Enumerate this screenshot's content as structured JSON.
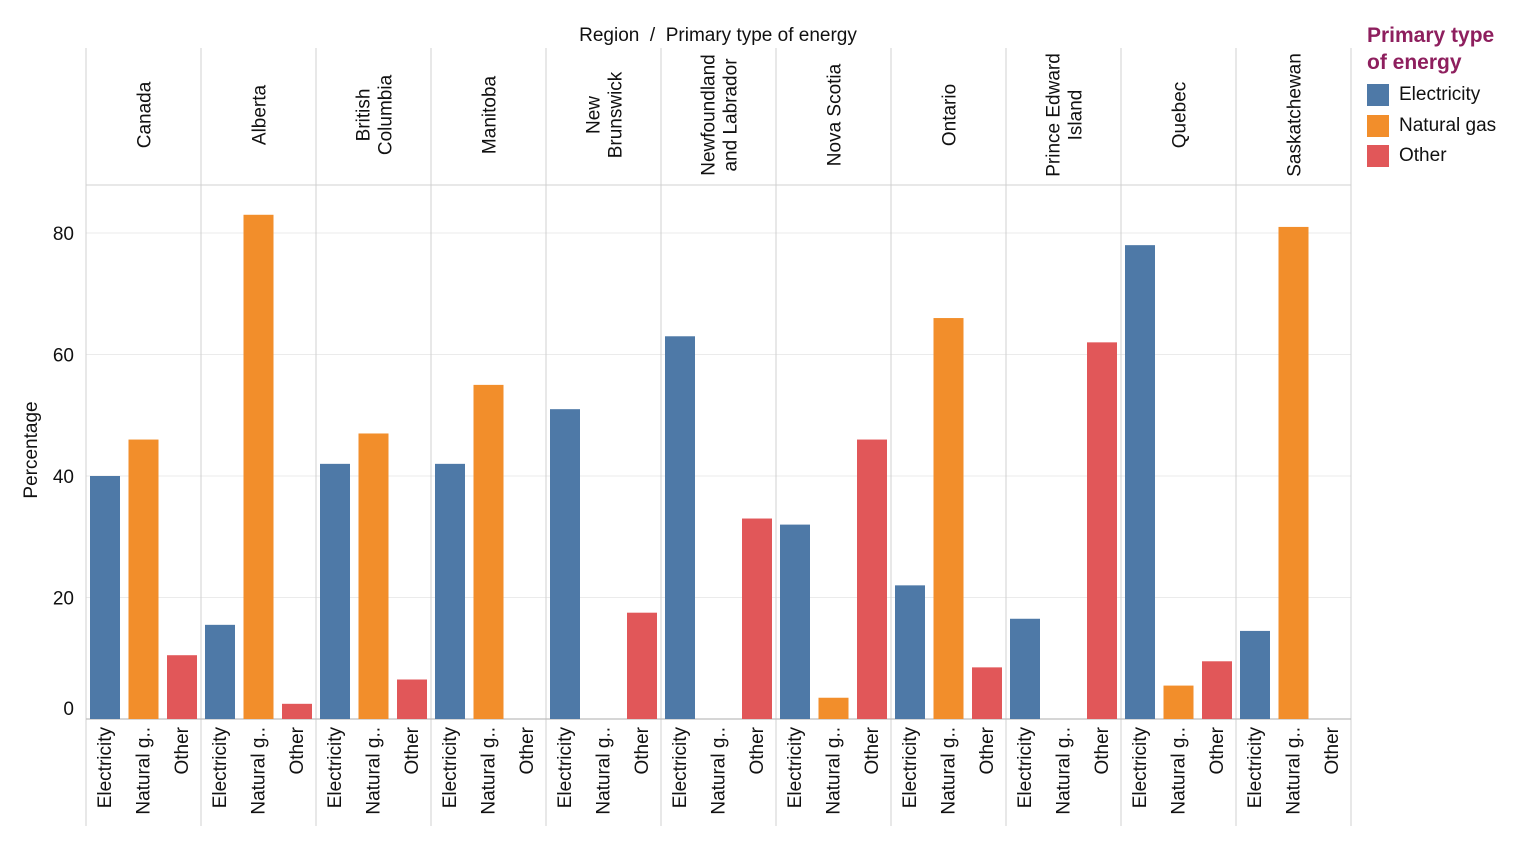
{
  "colors": {
    "Electricity": "#4e79a7",
    "Natural gas": "#f28e2b",
    "Other": "#e15759",
    "legend_title": "#8e1f5e",
    "grid": "#ebebeb",
    "divider": "#d0d0d0"
  },
  "legend": {
    "title_line1": "Primary type",
    "title_line2": "of energy",
    "items": [
      {
        "label": "Electricity",
        "color": "#4e79a7"
      },
      {
        "label": "Natural gas",
        "color": "#f28e2b"
      },
      {
        "label": "Other",
        "color": "#e15759"
      }
    ]
  },
  "chart_data": {
    "type": "bar",
    "title": "Region  /  Primary type of energy",
    "ylabel": "Percentage",
    "xlabel": "",
    "ylim": [
      0,
      88
    ],
    "yticks": [
      0,
      20,
      40,
      60,
      80
    ],
    "grid": true,
    "legend_position": "right",
    "categories": [
      "Electricity",
      "Natural g..",
      "Other"
    ],
    "series_names": [
      "Electricity",
      "Natural gas",
      "Other"
    ],
    "panels": [
      {
        "region": "Canada",
        "region_lines": [
          "Canada"
        ],
        "values": [
          40,
          46,
          10.5
        ]
      },
      {
        "region": "Alberta",
        "region_lines": [
          "Alberta"
        ],
        "values": [
          15.5,
          83,
          2.5
        ]
      },
      {
        "region": "British Columbia",
        "region_lines": [
          "British",
          "Columbia"
        ],
        "values": [
          42,
          47,
          6.5
        ]
      },
      {
        "region": "Manitoba",
        "region_lines": [
          "Manitoba"
        ],
        "values": [
          42,
          55,
          null
        ]
      },
      {
        "region": "New Brunswick",
        "region_lines": [
          "New",
          "Brunswick"
        ],
        "values": [
          51,
          null,
          17.5
        ]
      },
      {
        "region": "Newfoundland and Labrador",
        "region_lines": [
          "Newfoundland",
          "and Labrador"
        ],
        "values": [
          63,
          null,
          33
        ]
      },
      {
        "region": "Nova Scotia",
        "region_lines": [
          "Nova Scotia"
        ],
        "values": [
          32,
          3.5,
          46
        ]
      },
      {
        "region": "Ontario",
        "region_lines": [
          "Ontario"
        ],
        "values": [
          22,
          66,
          8.5
        ]
      },
      {
        "region": "Prince Edward Island",
        "region_lines": [
          "Prince Edward",
          "Island"
        ],
        "values": [
          16.5,
          null,
          62
        ]
      },
      {
        "region": "Quebec",
        "region_lines": [
          "Quebec"
        ],
        "values": [
          78,
          5.5,
          9.5
        ]
      },
      {
        "region": "Saskatchewan",
        "region_lines": [
          "Saskatchewan"
        ],
        "values": [
          14.5,
          81,
          null
        ]
      }
    ]
  }
}
